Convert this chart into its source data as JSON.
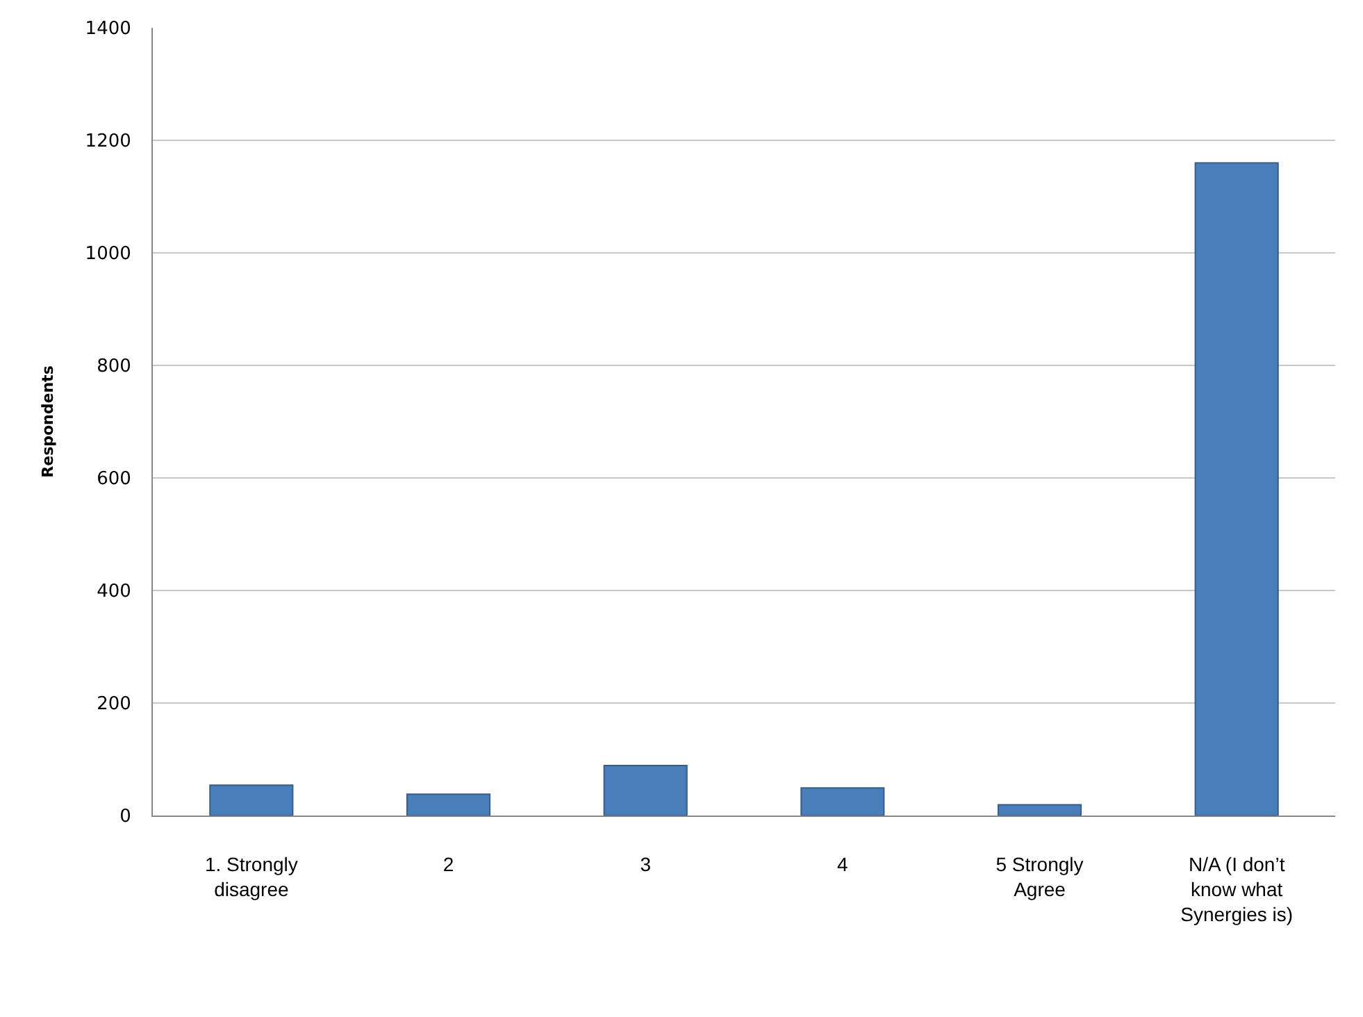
{
  "chart_data": {
    "type": "bar",
    "ylabel": "Respondents",
    "categories": [
      "1. Strongly disagree",
      "2",
      "3",
      "4",
      "5 Strongly Agree",
      "N/A (I don’t know what Synergies is)"
    ],
    "values": [
      54,
      38,
      89,
      49,
      19,
      1160
    ],
    "color": "#4a7ebb",
    "ylim": [
      0,
      1400
    ],
    "yticks": [
      0,
      200,
      400,
      600,
      800,
      1000,
      1200,
      1400
    ],
    "grid": "y"
  }
}
